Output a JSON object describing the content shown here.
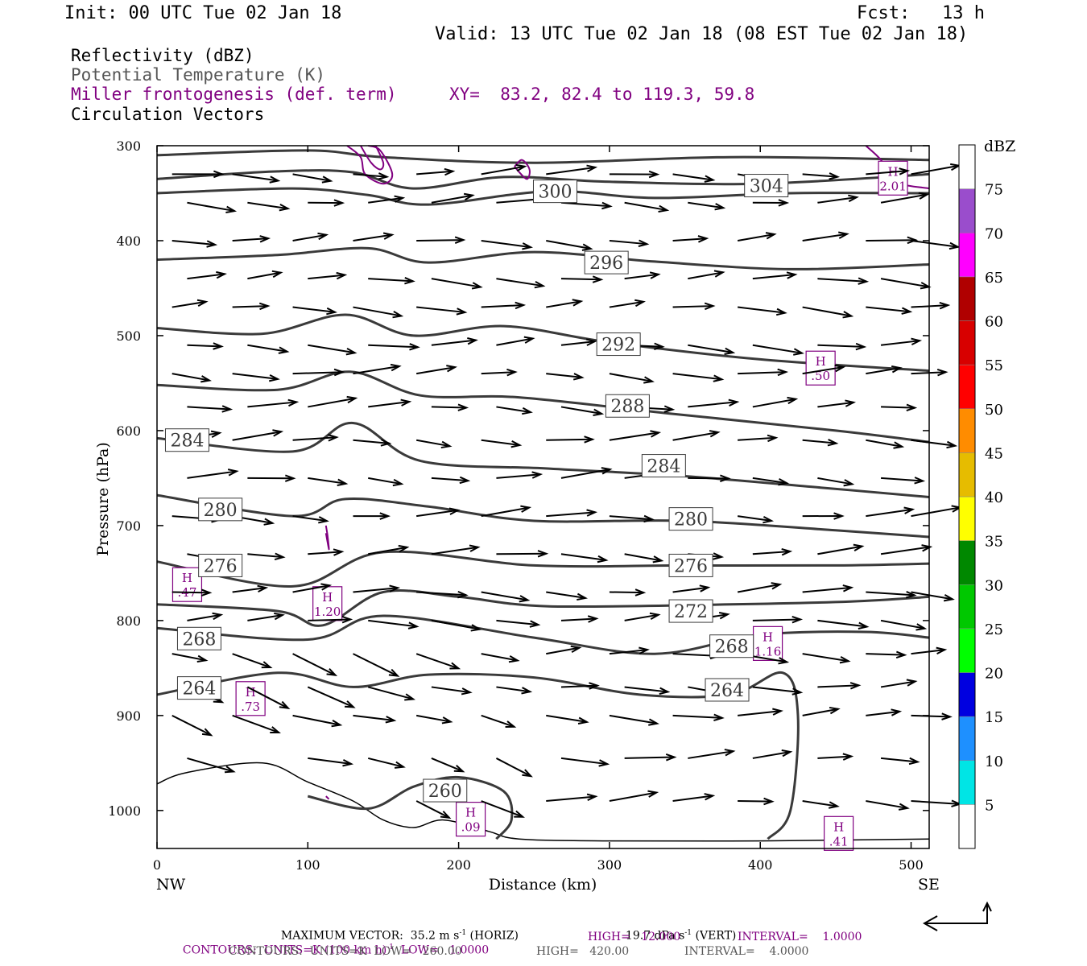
{
  "header": {
    "init": "Init: 00 UTC Tue 02 Jan 18",
    "fcst": "Fcst:   13 h",
    "valid": "Valid: 13 UTC Tue 02 Jan 18 (08 EST Tue 02 Jan 18)",
    "fields": [
      {
        "text": "Reflectivity (dBZ)",
        "color": "#000000"
      },
      {
        "text": "Potential Temperature (K)",
        "color": "#555555"
      },
      {
        "text": "Miller frontogenesis (def. term)",
        "color": "#800080"
      },
      {
        "text": "Circulation Vectors",
        "color": "#000000"
      }
    ],
    "xy": "XY=  83.2, 82.4 to 119.3, 59.8"
  },
  "chart_data": {
    "type": "cross-section",
    "xlabel": "Distance (km)",
    "ylabel": "Pressure (hPa)",
    "xlim": [
      0,
      512
    ],
    "ylim": [
      1040,
      300
    ],
    "x_ticks": [
      0,
      100,
      200,
      300,
      400,
      500
    ],
    "y_ticks": [
      300,
      400,
      500,
      600,
      700,
      800,
      900,
      1000
    ],
    "x_end_labels": {
      "left": "NW",
      "right": "SE"
    },
    "theta_label_values": [
      "300",
      "304",
      "296",
      "292",
      "288",
      "284",
      "284",
      "280",
      "280",
      "276",
      "276",
      "272",
      "268",
      "268",
      "264",
      "264",
      "260"
    ],
    "isentropes": [
      {
        "label": "304",
        "pts": [
          [
            0,
            310
          ],
          [
            100,
            305
          ],
          [
            150,
            312
          ],
          [
            250,
            318
          ],
          [
            380,
            312
          ],
          [
            512,
            315
          ]
        ]
      },
      {
        "label": "300",
        "pts": [
          [
            0,
            335
          ],
          [
            80,
            327
          ],
          [
            130,
            328
          ],
          [
            170,
            345
          ],
          [
            230,
            333
          ],
          [
            300,
            338
          ],
          [
            400,
            340
          ],
          [
            512,
            330
          ]
        ]
      },
      {
        "label": "300b",
        "pts": [
          [
            0,
            350
          ],
          [
            90,
            345
          ],
          [
            140,
            352
          ],
          [
            180,
            362
          ],
          [
            260,
            348
          ],
          [
            330,
            355
          ],
          [
            420,
            350
          ],
          [
            512,
            350
          ]
        ]
      },
      {
        "label": "296",
        "pts": [
          [
            0,
            420
          ],
          [
            80,
            415
          ],
          [
            140,
            408
          ],
          [
            180,
            423
          ],
          [
            250,
            412
          ],
          [
            330,
            422
          ],
          [
            420,
            430
          ],
          [
            512,
            425
          ]
        ]
      },
      {
        "label": "292",
        "pts": [
          [
            0,
            492
          ],
          [
            70,
            498
          ],
          [
            125,
            478
          ],
          [
            170,
            500
          ],
          [
            230,
            490
          ],
          [
            300,
            507
          ],
          [
            400,
            525
          ],
          [
            512,
            537
          ]
        ]
      },
      {
        "label": "288",
        "pts": [
          [
            0,
            552
          ],
          [
            80,
            557
          ],
          [
            128,
            538
          ],
          [
            175,
            563
          ],
          [
            240,
            565
          ],
          [
            340,
            582
          ],
          [
            450,
            600
          ],
          [
            512,
            612
          ]
        ]
      },
      {
        "label": "284",
        "pts": [
          [
            0,
            608
          ],
          [
            90,
            622
          ],
          [
            130,
            592
          ],
          [
            175,
            632
          ],
          [
            260,
            640
          ],
          [
            350,
            648
          ],
          [
            440,
            660
          ],
          [
            512,
            670
          ]
        ]
      },
      {
        "label": "280",
        "pts": [
          [
            0,
            668
          ],
          [
            90,
            690
          ],
          [
            125,
            672
          ],
          [
            180,
            680
          ],
          [
            250,
            695
          ],
          [
            350,
            695
          ],
          [
            450,
            705
          ],
          [
            512,
            712
          ]
        ]
      },
      {
        "label": "276",
        "pts": [
          [
            0,
            738
          ],
          [
            90,
            764
          ],
          [
            150,
            728
          ],
          [
            250,
            742
          ],
          [
            350,
            742
          ],
          [
            450,
            742
          ],
          [
            512,
            740
          ]
        ]
      },
      {
        "label": "272",
        "pts": [
          [
            0,
            783
          ],
          [
            80,
            790
          ],
          [
            110,
            805
          ],
          [
            150,
            770
          ],
          [
            200,
            775
          ],
          [
            260,
            785
          ],
          [
            380,
            783
          ],
          [
            460,
            780
          ],
          [
            512,
            775
          ]
        ]
      },
      {
        "label": "268",
        "pts": [
          [
            0,
            808
          ],
          [
            100,
            820
          ],
          [
            150,
            795
          ],
          [
            250,
            818
          ],
          [
            330,
            835
          ],
          [
            400,
            815
          ],
          [
            470,
            812
          ],
          [
            512,
            818
          ]
        ]
      },
      {
        "label": "264",
        "pts": [
          [
            0,
            878
          ],
          [
            80,
            855
          ],
          [
            130,
            870
          ],
          [
            180,
            857
          ],
          [
            250,
            860
          ],
          [
            320,
            878
          ],
          [
            380,
            878
          ],
          [
            415,
            855
          ],
          [
            425,
            900
          ],
          [
            420,
            1000
          ],
          [
            405,
            1030
          ]
        ]
      },
      {
        "label": "260",
        "pts": [
          [
            100,
            985
          ],
          [
            140,
            998
          ],
          [
            170,
            975
          ],
          [
            200,
            965
          ],
          [
            230,
            980
          ],
          [
            235,
            1010
          ],
          [
            225,
            1030
          ]
        ]
      }
    ],
    "terrain": [
      [
        0,
        972
      ],
      [
        20,
        960
      ],
      [
        70,
        950
      ],
      [
        100,
        970
      ],
      [
        130,
        990
      ],
      [
        150,
        1010
      ],
      [
        170,
        1018
      ],
      [
        190,
        1010
      ],
      [
        220,
        1022
      ],
      [
        240,
        1030
      ],
      [
        300,
        1032
      ],
      [
        400,
        1032
      ],
      [
        512,
        1030
      ]
    ],
    "frontogenesis_maxima": [
      {
        "label": "H",
        "value": "2.01",
        "x": 488,
        "p": 335
      },
      {
        "label": "H",
        "value": ".50",
        "x": 440,
        "p": 535
      },
      {
        "label": "H",
        "value": ".47",
        "x": 20,
        "p": 763
      },
      {
        "label": "H",
        "value": "1.20",
        "x": 113,
        "p": 783
      },
      {
        "label": "H",
        "value": "1.16",
        "x": 405,
        "p": 825
      },
      {
        "label": "H",
        "value": ".73",
        "x": 62,
        "p": 883
      },
      {
        "label": "H",
        "value": ".09",
        "x": 208,
        "p": 1010
      },
      {
        "label": "H",
        "value": ".41",
        "x": 452,
        "p": 1025
      }
    ],
    "colorbar": {
      "title": "dBZ",
      "levels": [
        "5",
        "10",
        "15",
        "20",
        "25",
        "30",
        "35",
        "40",
        "45",
        "50",
        "55",
        "60",
        "65",
        "70",
        "75"
      ],
      "colors": [
        "#ffffff",
        "#00e5e5",
        "#1e90ff",
        "#0000e0",
        "#00ff00",
        "#00c800",
        "#008800",
        "#ffff00",
        "#e6bc00",
        "#ff8c00",
        "#ff0000",
        "#d80000",
        "#b00000",
        "#ff00ff",
        "#9a4dcc",
        "#ffffff"
      ]
    }
  },
  "footer": {
    "max_vector_a": "MAXIMUM VECTOR:  35.2 m s",
    "max_vector_a_sup": "-1",
    "max_vector_b": " (HORIZ)",
    "max_vector_c": "19.7 dPa s",
    "max_vector_c_sup": "-1",
    "max_vector_d": " (VERT)",
    "contours1_a": "CONTOURS:  UNITS=K (100 km h)",
    "contours1_sup": "-1",
    "contours1_b": "  LOW=   1.0000",
    "contours1_c": "HIGH=   12.000",
    "contours1_d": "INTERVAL=    1.0000",
    "contours2_a": "CONTOURS:  UNITS=K  LOW=   260.00",
    "contours2_b": "HIGH=   420.00",
    "contours2_c": "INTERVAL=    4.0000"
  }
}
